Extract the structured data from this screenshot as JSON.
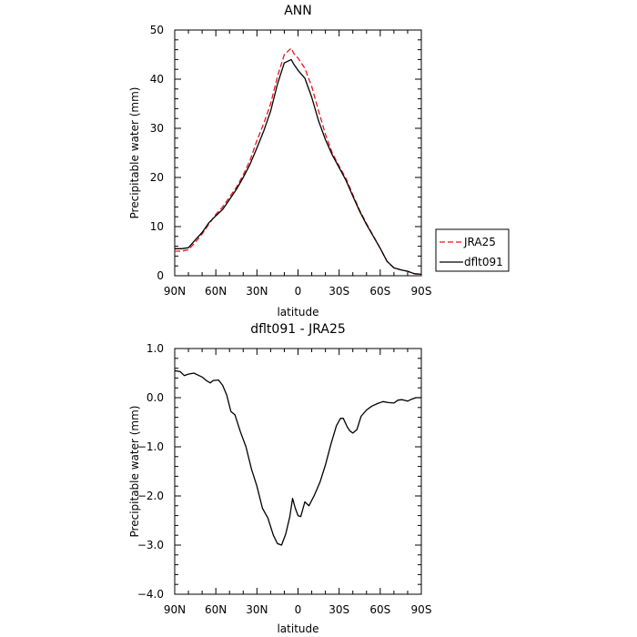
{
  "chart_data": [
    {
      "type": "line",
      "title": "ANN",
      "xlabel": "latitude",
      "ylabel": "Precipitable water  (mm)",
      "xlim": [
        90,
        -90
      ],
      "ylim": [
        0,
        50
      ],
      "x_ticks": [
        90,
        60,
        30,
        0,
        -30,
        -60,
        -90
      ],
      "x_tick_labels": [
        "90N",
        "60N",
        "30N",
        "0",
        "30S",
        "60S",
        "90S"
      ],
      "y_ticks": [
        0,
        10,
        20,
        30,
        40,
        50
      ],
      "y_tick_labels": [
        "0",
        "10",
        "20",
        "30",
        "40",
        "50"
      ],
      "legend_position": "right",
      "series": [
        {
          "name": "JRA25",
          "color": "#e8161b",
          "dash": "dashed",
          "x": [
            90,
            85,
            80,
            75,
            70,
            65,
            60,
            55,
            50,
            45,
            40,
            35,
            30,
            25,
            20,
            15,
            10,
            5,
            3,
            0,
            -5,
            -10,
            -15,
            -20,
            -25,
            -30,
            -35,
            -40,
            -45,
            -50,
            -55,
            -60,
            -65,
            -70,
            -75,
            -80,
            -85,
            -90
          ],
          "values": [
            5.0,
            5.0,
            5.3,
            6.8,
            8.5,
            10.5,
            12.5,
            14.0,
            16.0,
            18.0,
            20.5,
            23.5,
            27.5,
            31.0,
            35.0,
            40.5,
            45.0,
            46.3,
            45.2,
            44.3,
            42.2,
            38.5,
            33.5,
            28.8,
            25.0,
            22.3,
            19.8,
            16.5,
            13.3,
            10.6,
            8.1,
            5.6,
            2.9,
            1.6,
            1.2,
            0.9,
            0.4,
            0.3
          ]
        },
        {
          "name": "dflt091",
          "color": "#000000",
          "dash": "solid",
          "x": [
            90,
            85,
            80,
            75,
            70,
            65,
            60,
            55,
            50,
            45,
            40,
            35,
            30,
            25,
            20,
            15,
            10,
            5,
            3,
            0,
            -5,
            -10,
            -15,
            -20,
            -25,
            -30,
            -35,
            -40,
            -45,
            -50,
            -55,
            -60,
            -65,
            -70,
            -75,
            -80,
            -85,
            -90
          ],
          "values": [
            5.5,
            5.5,
            5.7,
            7.3,
            8.8,
            10.8,
            12.2,
            13.5,
            15.5,
            17.6,
            20.0,
            22.7,
            26.0,
            29.5,
            33.5,
            39.0,
            43.3,
            44.0,
            43.0,
            41.8,
            40.2,
            36.3,
            31.5,
            27.7,
            24.6,
            22.0,
            19.4,
            16.2,
            13.1,
            10.4,
            8.0,
            5.6,
            2.9,
            1.6,
            1.2,
            0.9,
            0.4,
            0.3
          ]
        }
      ]
    },
    {
      "type": "line",
      "title": "dflt091  -  JRA25",
      "xlabel": "latitude",
      "ylabel": "Precipitable water  (mm)",
      "xlim": [
        90,
        -90
      ],
      "ylim": [
        -4.0,
        1.0
      ],
      "x_ticks": [
        90,
        60,
        30,
        0,
        -30,
        -60,
        -90
      ],
      "x_tick_labels": [
        "90N",
        "60N",
        "30N",
        "0",
        "30S",
        "60S",
        "90S"
      ],
      "y_ticks": [
        1.0,
        0.0,
        -1.0,
        -2.0,
        -3.0,
        -4.0
      ],
      "y_tick_labels": [
        "1.0",
        "0.0",
        "−1.0",
        "−2.0",
        "−3.0",
        "−4.0"
      ],
      "series": [
        {
          "name": "",
          "color": "#000000",
          "dash": "solid",
          "x": [
            90,
            86,
            83,
            80,
            76,
            73,
            70,
            67,
            64,
            62,
            58,
            55,
            52,
            49,
            46,
            42,
            38,
            34,
            30,
            26,
            22,
            18,
            15,
            12,
            9,
            6,
            4,
            2,
            0,
            -2,
            -5,
            -8,
            -12,
            -16,
            -20,
            -24,
            -28,
            -31,
            -33,
            -36,
            -38,
            -40,
            -43,
            -46,
            -50,
            -54,
            -58,
            -62,
            -66,
            -70,
            -73,
            -76,
            -80,
            -83,
            -86,
            -90
          ],
          "values": [
            0.55,
            0.53,
            0.45,
            0.48,
            0.5,
            0.46,
            0.42,
            0.35,
            0.3,
            0.35,
            0.36,
            0.25,
            0.05,
            -0.28,
            -0.35,
            -0.7,
            -1.0,
            -1.45,
            -1.8,
            -2.25,
            -2.45,
            -2.8,
            -2.97,
            -3.0,
            -2.78,
            -2.42,
            -2.05,
            -2.25,
            -2.4,
            -2.42,
            -2.12,
            -2.2,
            -1.98,
            -1.72,
            -1.37,
            -0.95,
            -0.57,
            -0.42,
            -0.42,
            -0.6,
            -0.68,
            -0.72,
            -0.65,
            -0.38,
            -0.25,
            -0.17,
            -0.12,
            -0.08,
            -0.1,
            -0.11,
            -0.05,
            -0.04,
            -0.07,
            -0.03,
            0.0,
            0.0
          ]
        }
      ]
    }
  ]
}
